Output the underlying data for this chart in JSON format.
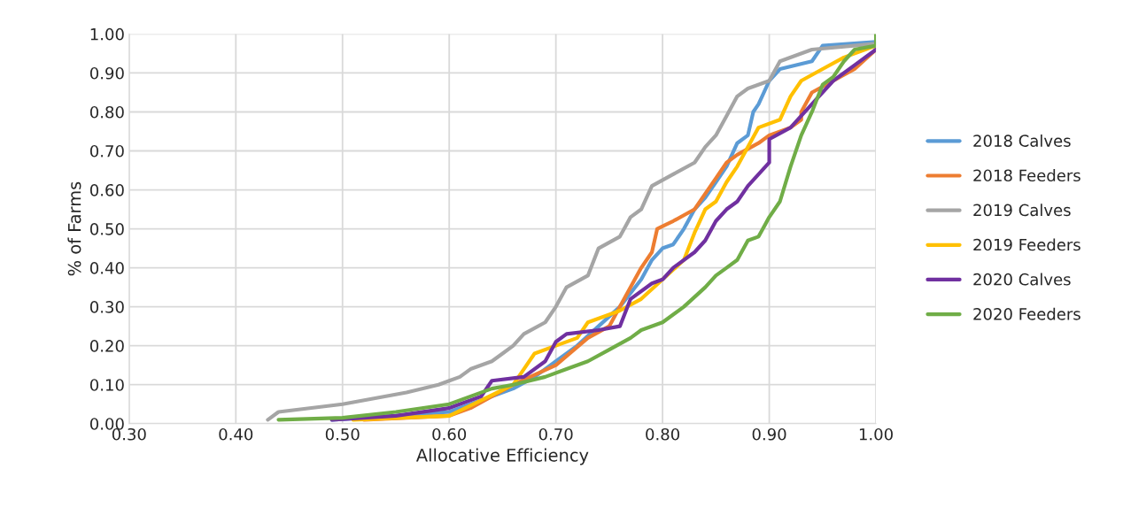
{
  "chart_data": {
    "type": "line",
    "xlabel": "Allocative Efficiency",
    "ylabel": "% of Farms",
    "xlim": [
      0.3,
      1.0
    ],
    "ylim": [
      0.0,
      1.0
    ],
    "xticks": [
      {
        "value": 0.3,
        "label": "0.30"
      },
      {
        "value": 0.4,
        "label": "0.40"
      },
      {
        "value": 0.5,
        "label": "0.50"
      },
      {
        "value": 0.6,
        "label": "0.60"
      },
      {
        "value": 0.7,
        "label": "0.70"
      },
      {
        "value": 0.8,
        "label": "0.80"
      },
      {
        "value": 0.9,
        "label": "0.90"
      },
      {
        "value": 1.0,
        "label": "1.00"
      }
    ],
    "yticks": [
      {
        "value": 0.0,
        "label": "0.00"
      },
      {
        "value": 0.1,
        "label": "0.10"
      },
      {
        "value": 0.2,
        "label": "0.20"
      },
      {
        "value": 0.3,
        "label": "0.30"
      },
      {
        "value": 0.4,
        "label": "0.40"
      },
      {
        "value": 0.5,
        "label": "0.50"
      },
      {
        "value": 0.6,
        "label": "0.60"
      },
      {
        "value": 0.7,
        "label": "0.70"
      },
      {
        "value": 0.8,
        "label": "0.80"
      },
      {
        "value": 0.9,
        "label": "0.90"
      },
      {
        "value": 1.0,
        "label": "1.00"
      }
    ],
    "grid": true,
    "legend": "right",
    "marker": "none",
    "line_style": "solid",
    "series": [
      {
        "name": "2018 Calves",
        "color": "#5b9bd5",
        "x": [
          0.49,
          0.55,
          0.6,
          0.63,
          0.66,
          0.68,
          0.7,
          0.72,
          0.74,
          0.76,
          0.78,
          0.79,
          0.8,
          0.81,
          0.82,
          0.83,
          0.84,
          0.85,
          0.86,
          0.87,
          0.88,
          0.885,
          0.89,
          0.9,
          0.91,
          0.94,
          0.95,
          1.0
        ],
        "values": [
          0.01,
          0.02,
          0.03,
          0.06,
          0.09,
          0.12,
          0.16,
          0.2,
          0.25,
          0.3,
          0.37,
          0.42,
          0.45,
          0.46,
          0.5,
          0.55,
          0.58,
          0.62,
          0.66,
          0.72,
          0.74,
          0.8,
          0.82,
          0.88,
          0.91,
          0.93,
          0.97,
          0.98
        ]
      },
      {
        "name": "2018 Feeders",
        "color": "#ed7d31",
        "x": [
          0.52,
          0.6,
          0.62,
          0.64,
          0.66,
          0.7,
          0.73,
          0.75,
          0.76,
          0.77,
          0.78,
          0.79,
          0.795,
          0.81,
          0.83,
          0.84,
          0.85,
          0.86,
          0.87,
          0.89,
          0.9,
          0.92,
          0.93,
          0.93,
          0.94,
          0.96,
          0.98,
          1.0
        ],
        "values": [
          0.01,
          0.02,
          0.04,
          0.07,
          0.1,
          0.15,
          0.22,
          0.25,
          0.3,
          0.35,
          0.4,
          0.44,
          0.5,
          0.52,
          0.55,
          0.59,
          0.63,
          0.67,
          0.69,
          0.72,
          0.74,
          0.76,
          0.78,
          0.8,
          0.85,
          0.88,
          0.91,
          0.96
        ]
      },
      {
        "name": "2019 Calves",
        "color": "#a5a5a5",
        "x": [
          0.43,
          0.44,
          0.5,
          0.56,
          0.59,
          0.61,
          0.62,
          0.64,
          0.65,
          0.66,
          0.67,
          0.69,
          0.7,
          0.71,
          0.73,
          0.74,
          0.76,
          0.77,
          0.78,
          0.79,
          0.81,
          0.83,
          0.84,
          0.85,
          0.86,
          0.87,
          0.88,
          0.9,
          0.91,
          0.94,
          1.0
        ],
        "values": [
          0.01,
          0.03,
          0.05,
          0.08,
          0.1,
          0.12,
          0.14,
          0.16,
          0.18,
          0.2,
          0.23,
          0.26,
          0.3,
          0.35,
          0.38,
          0.45,
          0.48,
          0.53,
          0.55,
          0.61,
          0.64,
          0.67,
          0.71,
          0.74,
          0.79,
          0.84,
          0.86,
          0.88,
          0.93,
          0.96,
          0.975
        ]
      },
      {
        "name": "2019 Feeders",
        "color": "#ffc000",
        "x": [
          0.51,
          0.6,
          0.63,
          0.66,
          0.67,
          0.68,
          0.7,
          0.72,
          0.73,
          0.75,
          0.76,
          0.78,
          0.8,
          0.82,
          0.83,
          0.84,
          0.85,
          0.86,
          0.87,
          0.88,
          0.89,
          0.91,
          0.92,
          0.93,
          0.95,
          0.97,
          1.0
        ],
        "values": [
          0.01,
          0.02,
          0.06,
          0.1,
          0.14,
          0.18,
          0.2,
          0.22,
          0.26,
          0.28,
          0.29,
          0.32,
          0.37,
          0.42,
          0.49,
          0.55,
          0.57,
          0.62,
          0.66,
          0.71,
          0.76,
          0.78,
          0.84,
          0.88,
          0.91,
          0.94,
          0.97
        ]
      },
      {
        "name": "2020 Calves",
        "color": "#7030a0",
        "x": [
          0.49,
          0.55,
          0.6,
          0.63,
          0.64,
          0.67,
          0.69,
          0.7,
          0.71,
          0.74,
          0.76,
          0.77,
          0.79,
          0.8,
          0.81,
          0.83,
          0.84,
          0.85,
          0.86,
          0.87,
          0.88,
          0.89,
          0.9,
          0.9,
          0.92,
          0.94,
          0.96,
          0.98,
          1.0
        ],
        "values": [
          0.01,
          0.02,
          0.04,
          0.07,
          0.11,
          0.12,
          0.16,
          0.21,
          0.23,
          0.24,
          0.25,
          0.32,
          0.36,
          0.37,
          0.4,
          0.44,
          0.47,
          0.52,
          0.55,
          0.57,
          0.61,
          0.64,
          0.67,
          0.73,
          0.76,
          0.82,
          0.88,
          0.92,
          0.96
        ]
      },
      {
        "name": "2020 Feeders",
        "color": "#70ad47",
        "x": [
          0.44,
          0.5,
          0.55,
          0.6,
          0.64,
          0.66,
          0.69,
          0.71,
          0.73,
          0.75,
          0.77,
          0.78,
          0.8,
          0.82,
          0.84,
          0.85,
          0.86,
          0.87,
          0.88,
          0.89,
          0.9,
          0.91,
          0.92,
          0.93,
          0.94,
          0.95,
          0.96,
          0.97,
          0.98,
          1.0,
          1.0
        ],
        "values": [
          0.01,
          0.015,
          0.03,
          0.05,
          0.09,
          0.1,
          0.12,
          0.14,
          0.16,
          0.19,
          0.22,
          0.24,
          0.26,
          0.3,
          0.35,
          0.38,
          0.4,
          0.42,
          0.47,
          0.48,
          0.53,
          0.57,
          0.66,
          0.74,
          0.8,
          0.87,
          0.89,
          0.93,
          0.96,
          0.97,
          1.0
        ]
      }
    ]
  }
}
